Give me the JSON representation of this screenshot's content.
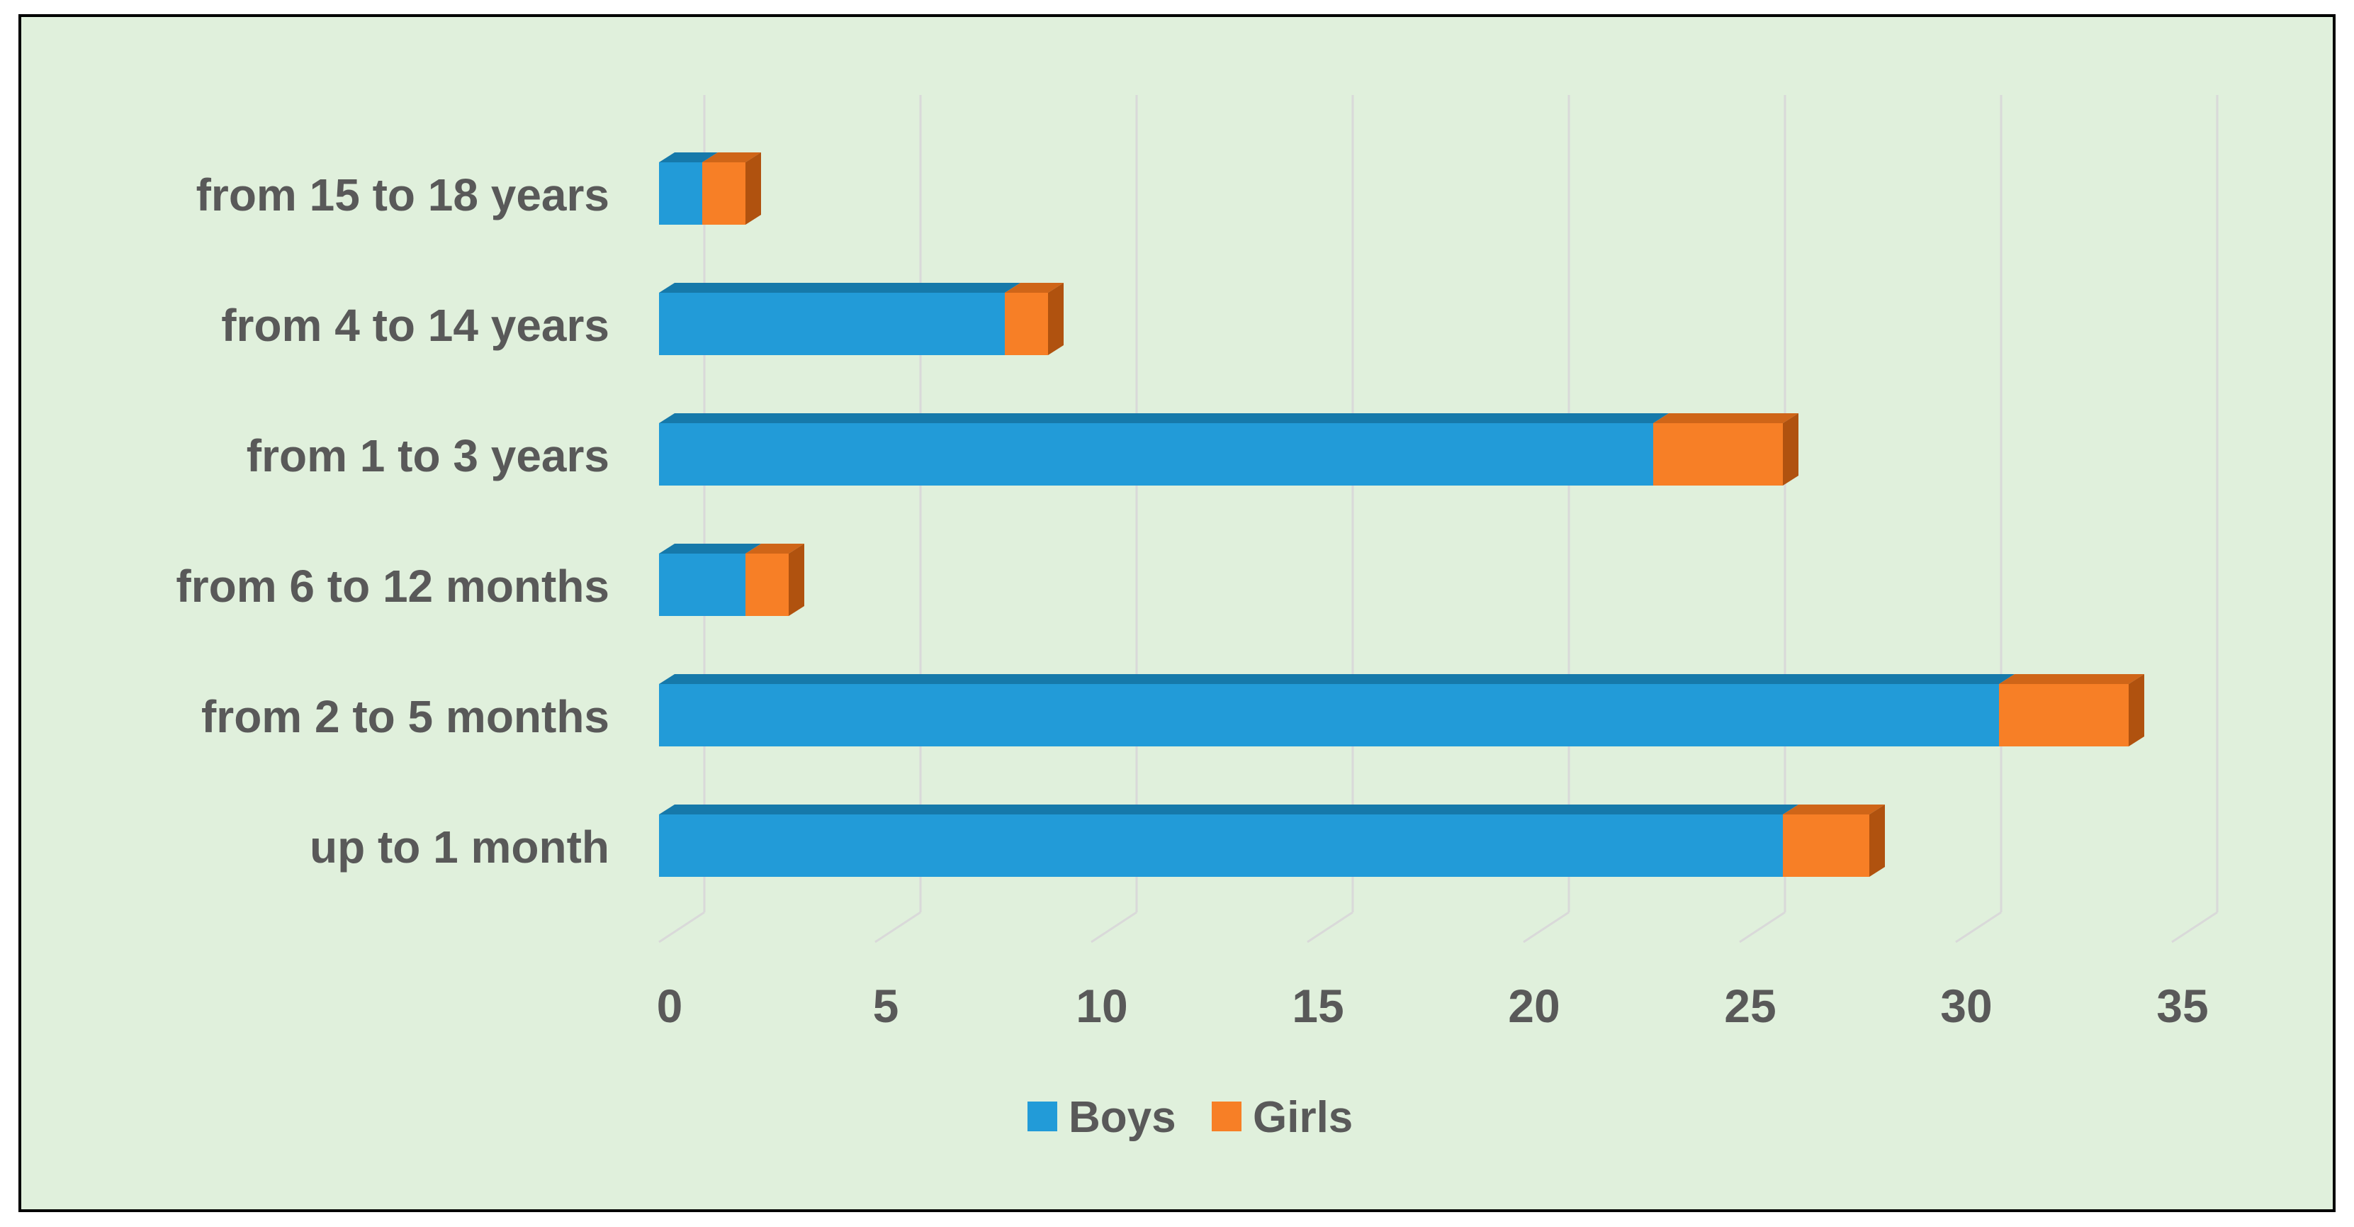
{
  "colors": {
    "background": "#e0f0dc",
    "border": "#000000",
    "grid": "#d9d9d9",
    "text": "#595959",
    "boys": "#229bd8",
    "boys_top": "#1679aa",
    "girls": "#f77f26",
    "girls_top": "#cf6518",
    "girls_side": "#b0520f"
  },
  "chart_data": {
    "type": "bar",
    "orientation": "horizontal",
    "stacked": true,
    "style": "3d",
    "categories": [
      "up to 1 month",
      "from 2 to 5 months",
      "from 6 to 12 months",
      "from 1 to 3 years",
      "from 4 to 14 years",
      "from 15 to 18 years"
    ],
    "series": [
      {
        "name": "Boys",
        "values": [
          26,
          31,
          2,
          23,
          8,
          1
        ]
      },
      {
        "name": "Girls",
        "values": [
          2,
          3,
          1,
          3,
          1,
          1
        ]
      }
    ],
    "xlim": [
      0,
      35
    ],
    "x_ticks": [
      0,
      5,
      10,
      15,
      20,
      25,
      30,
      35
    ],
    "grid": true,
    "legend": "bottom",
    "title": "",
    "xlabel": "",
    "ylabel": ""
  }
}
